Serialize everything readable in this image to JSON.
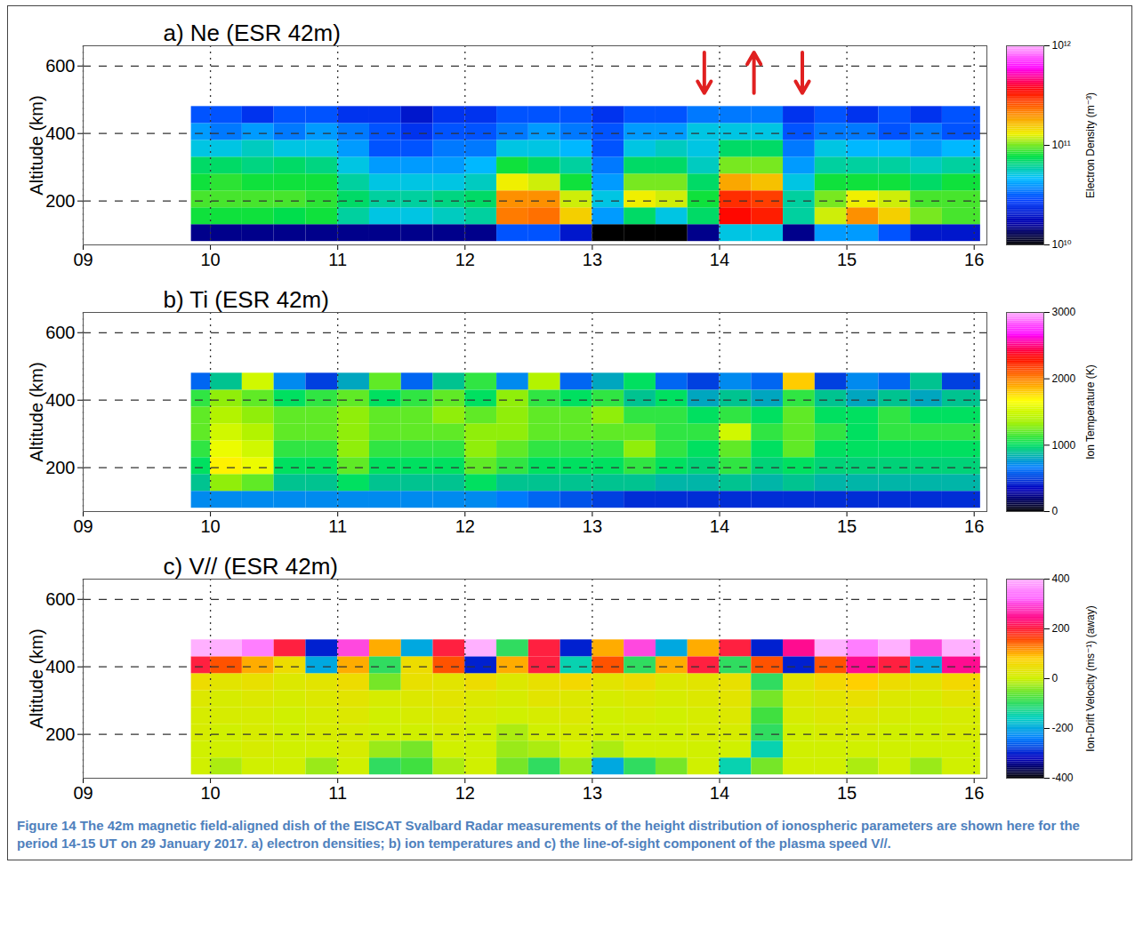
{
  "chart_data": [
    {
      "type": "heatmap",
      "title": "a) Ne (ESR 42m)",
      "y_label": "Altitude (km)",
      "xlim": [
        9,
        16.1
      ],
      "xticks": [
        {
          "value": 9,
          "label": "09"
        },
        10,
        11,
        12,
        13,
        14,
        15,
        16
      ],
      "ylim": [
        70,
        660
      ],
      "yticks": [
        200,
        400,
        600
      ],
      "grid": true,
      "time_edges": [
        9.85,
        10,
        10.25,
        10.5,
        10.75,
        11,
        11.25,
        11.5,
        11.75,
        12,
        12.25,
        12.5,
        12.75,
        13,
        13.25,
        13.5,
        13.75,
        14,
        14.25,
        14.5,
        14.75,
        15,
        15.25,
        15.5,
        15.75,
        16.05
      ],
      "altitude_edges": [
        80,
        130,
        180,
        230,
        280,
        330,
        380,
        430,
        480
      ],
      "cells": [
        [
          15000000000.0,
          15000000000.0,
          15000000000.0,
          15000000000.0,
          15000000000.0,
          15000000000.0,
          15000000000.0,
          15000000000.0,
          15000000000.0,
          15000000000.0,
          30000000000.0,
          30000000000.0,
          20000000000.0,
          10000000000.0,
          8000000000.0,
          8000000000.0,
          15000000000.0,
          50000000000.0,
          50000000000.0,
          15000000000.0,
          40000000000.0,
          40000000000.0,
          30000000000.0,
          20000000000.0,
          20000000000.0
        ],
        [
          80000000000.0,
          80000000000.0,
          80000000000.0,
          75000000000.0,
          80000000000.0,
          60000000000.0,
          50000000000.0,
          50000000000.0,
          55000000000.0,
          60000000000.0,
          220000000000.0,
          230000000000.0,
          150000000000.0,
          40000000000.0,
          70000000000.0,
          50000000000.0,
          70000000000.0,
          350000000000.0,
          320000000000.0,
          60000000000.0,
          120000000000.0,
          200000000000.0,
          150000000000.0,
          100000000000.0,
          90000000000.0
        ],
        [
          90000000000.0,
          90000000000.0,
          90000000000.0,
          90000000000.0,
          85000000000.0,
          70000000000.0,
          60000000000.0,
          60000000000.0,
          65000000000.0,
          70000000000.0,
          200000000000.0,
          200000000000.0,
          120000000000.0,
          50000000000.0,
          130000000000.0,
          120000000000.0,
          80000000000.0,
          300000000000.0,
          280000000000.0,
          60000000000.0,
          100000000000.0,
          130000000000.0,
          120000000000.0,
          90000000000.0,
          90000000000.0
        ],
        [
          80000000000.0,
          85000000000.0,
          80000000000.0,
          80000000000.0,
          80000000000.0,
          60000000000.0,
          50000000000.0,
          50000000000.0,
          50000000000.0,
          55000000000.0,
          130000000000.0,
          120000000000.0,
          80000000000.0,
          40000000000.0,
          100000000000.0,
          100000000000.0,
          70000000000.0,
          180000000000.0,
          160000000000.0,
          50000000000.0,
          80000000000.0,
          80000000000.0,
          80000000000.0,
          70000000000.0,
          80000000000.0
        ],
        [
          70000000000.0,
          70000000000.0,
          65000000000.0,
          70000000000.0,
          65000000000.0,
          50000000000.0,
          40000000000.0,
          40000000000.0,
          40000000000.0,
          45000000000.0,
          80000000000.0,
          70000000000.0,
          60000000000.0,
          35000000000.0,
          70000000000.0,
          70000000000.0,
          55000000000.0,
          100000000000.0,
          100000000000.0,
          40000000000.0,
          60000000000.0,
          60000000000.0,
          60000000000.0,
          55000000000.0,
          60000000000.0
        ],
        [
          50000000000.0,
          50000000000.0,
          55000000000.0,
          50000000000.0,
          50000000000.0,
          40000000000.0,
          30000000000.0,
          30000000000.0,
          35000000000.0,
          35000000000.0,
          50000000000.0,
          50000000000.0,
          45000000000.0,
          30000000000.0,
          50000000000.0,
          55000000000.0,
          50000000000.0,
          70000000000.0,
          70000000000.0,
          35000000000.0,
          50000000000.0,
          45000000000.0,
          45000000000.0,
          40000000000.0,
          45000000000.0
        ],
        [
          40000000000.0,
          35000000000.0,
          40000000000.0,
          35000000000.0,
          40000000000.0,
          35000000000.0,
          30000000000.0,
          25000000000.0,
          30000000000.0,
          30000000000.0,
          35000000000.0,
          40000000000.0,
          35000000000.0,
          30000000000.0,
          40000000000.0,
          40000000000.0,
          50000000000.0,
          50000000000.0,
          50000000000.0,
          30000000000.0,
          35000000000.0,
          35000000000.0,
          30000000000.0,
          35000000000.0,
          30000000000.0
        ],
        [
          30000000000.0,
          30000000000.0,
          25000000000.0,
          30000000000.0,
          30000000000.0,
          25000000000.0,
          25000000000.0,
          20000000000.0,
          25000000000.0,
          25000000000.0,
          30000000000.0,
          30000000000.0,
          30000000000.0,
          25000000000.0,
          30000000000.0,
          30000000000.0,
          35000000000.0,
          35000000000.0,
          35000000000.0,
          25000000000.0,
          30000000000.0,
          25000000000.0,
          30000000000.0,
          25000000000.0,
          30000000000.0
        ]
      ],
      "colors": [
        "#000000",
        "#0000b0",
        "#0040ff",
        "#00c0ff",
        "#00e040",
        "#f0f000",
        "#ff8000",
        "#ff0000",
        "#ff00ff",
        "#ffb0ff"
      ],
      "colorbar": {
        "label": "Electron Density (m⁻³)",
        "range": [
          10000000000.0,
          1000000000000.0
        ],
        "log": true,
        "ticks": [
          {
            "value": 10000000000.0,
            "label": "10¹⁰"
          },
          {
            "value": 100000000000.0,
            "label": "10¹¹"
          },
          {
            "value": 1000000000000.0,
            "label": "10¹²"
          }
        ]
      },
      "annotations": [
        {
          "x": 13.88,
          "from": 640,
          "to": 520,
          "color": "#e02020"
        },
        {
          "x": 14.27,
          "from": 520,
          "to": 640,
          "color": "#e02020"
        },
        {
          "x": 14.65,
          "from": 640,
          "to": 520,
          "color": "#e02020"
        }
      ]
    },
    {
      "type": "heatmap",
      "title": "b) Ti (ESR 42m)",
      "y_label": "Altitude (km)",
      "xlim": [
        9,
        16.1
      ],
      "xticks": [
        {
          "value": 9,
          "label": "09"
        },
        10,
        11,
        12,
        13,
        14,
        15,
        16
      ],
      "ylim": [
        70,
        660
      ],
      "yticks": [
        200,
        400,
        600
      ],
      "grid": true,
      "time_edges": [
        9.85,
        10,
        10.25,
        10.5,
        10.75,
        11,
        11.25,
        11.5,
        11.75,
        12,
        12.25,
        12.5,
        12.75,
        13,
        13.25,
        13.5,
        13.75,
        14,
        14.25,
        14.5,
        14.75,
        15,
        15.25,
        15.5,
        15.75,
        16.05
      ],
      "altitude_edges": [
        80,
        130,
        180,
        230,
        280,
        330,
        380,
        430,
        480
      ],
      "cells": [
        [
          700,
          700,
          700,
          700,
          700,
          700,
          700,
          700,
          700,
          700,
          650,
          600,
          550,
          500,
          450,
          450,
          450,
          450,
          450,
          450,
          450,
          450,
          450,
          450,
          450
        ],
        [
          900,
          1300,
          1200,
          900,
          900,
          1000,
          900,
          900,
          900,
          1000,
          900,
          900,
          900,
          900,
          900,
          850,
          850,
          900,
          850,
          900,
          850,
          850,
          850,
          850,
          850
        ],
        [
          1000,
          1700,
          1600,
          1000,
          1000,
          1200,
          1000,
          1000,
          1000,
          1200,
          1100,
          1000,
          1000,
          1000,
          1100,
          1000,
          950,
          1100,
          950,
          1000,
          950,
          950,
          950,
          950,
          950
        ],
        [
          1100,
          1600,
          1500,
          1100,
          1100,
          1300,
          1100,
          1100,
          1100,
          1300,
          1200,
          1100,
          1100,
          1100,
          1300,
          1100,
          1000,
          1200,
          1000,
          1200,
          1000,
          1000,
          1000,
          1000,
          1000
        ],
        [
          1200,
          1500,
          1400,
          1200,
          1200,
          1300,
          1200,
          1200,
          1200,
          1300,
          1300,
          1200,
          1200,
          1200,
          1200,
          1100,
          1100,
          1500,
          1100,
          1200,
          1100,
          1000,
          1100,
          1100,
          1100
        ],
        [
          1200,
          1400,
          1300,
          1200,
          1200,
          1300,
          1200,
          1200,
          1300,
          1200,
          1300,
          1200,
          1200,
          1300,
          1100,
          1100,
          1000,
          1100,
          1000,
          1200,
          1000,
          1000,
          1100,
          1000,
          1000
        ],
        [
          1100,
          1300,
          1200,
          1000,
          1100,
          1200,
          1000,
          1100,
          1200,
          1000,
          1300,
          1100,
          1000,
          1100,
          900,
          1000,
          800,
          900,
          800,
          1100,
          900,
          800,
          900,
          800,
          900
        ],
        [
          600,
          900,
          1500,
          700,
          500,
          800,
          1200,
          600,
          900,
          1100,
          700,
          1400,
          600,
          800,
          1000,
          600,
          500,
          700,
          600,
          1800,
          500,
          700,
          600,
          900,
          500
        ]
      ],
      "colors": [
        "#000000",
        "#0000c0",
        "#0080ff",
        "#00e060",
        "#a0f000",
        "#ffff00",
        "#ff8000",
        "#ff0000",
        "#ff00ff",
        "#ffb0ff"
      ],
      "colorbar": {
        "label": "Ion Temperature (K)",
        "range": [
          0,
          3000
        ],
        "ticks": [
          0,
          1000,
          2000,
          3000
        ]
      }
    },
    {
      "type": "heatmap",
      "title": "c) V// (ESR 42m)",
      "y_label": "Altitude (km)",
      "xlim": [
        9,
        16.1
      ],
      "xticks": [
        {
          "value": 9,
          "label": "09"
        },
        10,
        11,
        12,
        13,
        14,
        15,
        16
      ],
      "ylim": [
        70,
        660
      ],
      "yticks": [
        200,
        400,
        600
      ],
      "grid": true,
      "time_edges": [
        9.85,
        10,
        10.25,
        10.5,
        10.75,
        11,
        11.25,
        11.5,
        11.75,
        12,
        12.25,
        12.5,
        12.75,
        13,
        13.25,
        13.5,
        13.75,
        14,
        14.25,
        14.5,
        14.75,
        15,
        15.25,
        15.5,
        15.75,
        16.05
      ],
      "altitude_edges": [
        80,
        130,
        180,
        230,
        280,
        330,
        380,
        430,
        480
      ],
      "cells": [
        [
          0,
          -20,
          0,
          0,
          -30,
          0,
          -100,
          -80,
          -20,
          0,
          -50,
          -100,
          -30,
          -200,
          -100,
          -50,
          0,
          -150,
          -50,
          0,
          0,
          -20,
          0,
          -30,
          0
        ],
        [
          0,
          0,
          10,
          0,
          0,
          10,
          -30,
          -50,
          0,
          0,
          -30,
          -20,
          0,
          -20,
          0,
          0,
          0,
          0,
          -150,
          0,
          0,
          0,
          0,
          0,
          0
        ],
        [
          10,
          0,
          10,
          0,
          10,
          10,
          0,
          0,
          10,
          0,
          -20,
          0,
          10,
          0,
          0,
          0,
          10,
          10,
          -100,
          0,
          10,
          10,
          0,
          0,
          10
        ],
        [
          10,
          10,
          10,
          0,
          10,
          20,
          0,
          10,
          20,
          10,
          0,
          10,
          20,
          0,
          10,
          0,
          10,
          20,
          -80,
          10,
          20,
          20,
          10,
          0,
          10
        ],
        [
          20,
          10,
          20,
          10,
          20,
          30,
          10,
          20,
          30,
          20,
          10,
          30,
          20,
          10,
          20,
          10,
          20,
          30,
          -50,
          20,
          30,
          40,
          20,
          10,
          30
        ],
        [
          50,
          30,
          40,
          20,
          30,
          50,
          -50,
          40,
          30,
          50,
          20,
          40,
          60,
          30,
          50,
          20,
          30,
          40,
          -100,
          30,
          60,
          80,
          50,
          30,
          60
        ],
        [
          200,
          150,
          100,
          50,
          -200,
          100,
          -100,
          50,
          150,
          -300,
          100,
          200,
          -150,
          150,
          -100,
          100,
          200,
          -100,
          150,
          -300,
          150,
          250,
          200,
          -200,
          250
        ],
        [
          400,
          400,
          350,
          200,
          -300,
          300,
          100,
          -200,
          200,
          400,
          -100,
          200,
          -300,
          100,
          300,
          -200,
          100,
          200,
          -300,
          250,
          400,
          350,
          400,
          300,
          400
        ]
      ],
      "colors": [
        "#000000",
        "#0000c0",
        "#0080ff",
        "#00d0c0",
        "#40e040",
        "#d0f000",
        "#ffd000",
        "#ff4000",
        "#ff0080",
        "#ff60ff",
        "#ffb0ff"
      ],
      "colorbar": {
        "label": "Ion-Drift Velocity (ms⁻¹) (away)",
        "range": [
          -400,
          400
        ],
        "ticks": [
          -400,
          -200,
          0,
          200,
          400
        ]
      }
    }
  ],
  "caption": "Figure 14 The 42m magnetic field-aligned dish of the EISCAT Svalbard Radar measurements of the height distribution of ionospheric parameters are shown here for the period 14-15 UT on 29 January 2017. a) electron densities; b) ion temperatures and c) the line-of-sight component of the plasma speed V//."
}
